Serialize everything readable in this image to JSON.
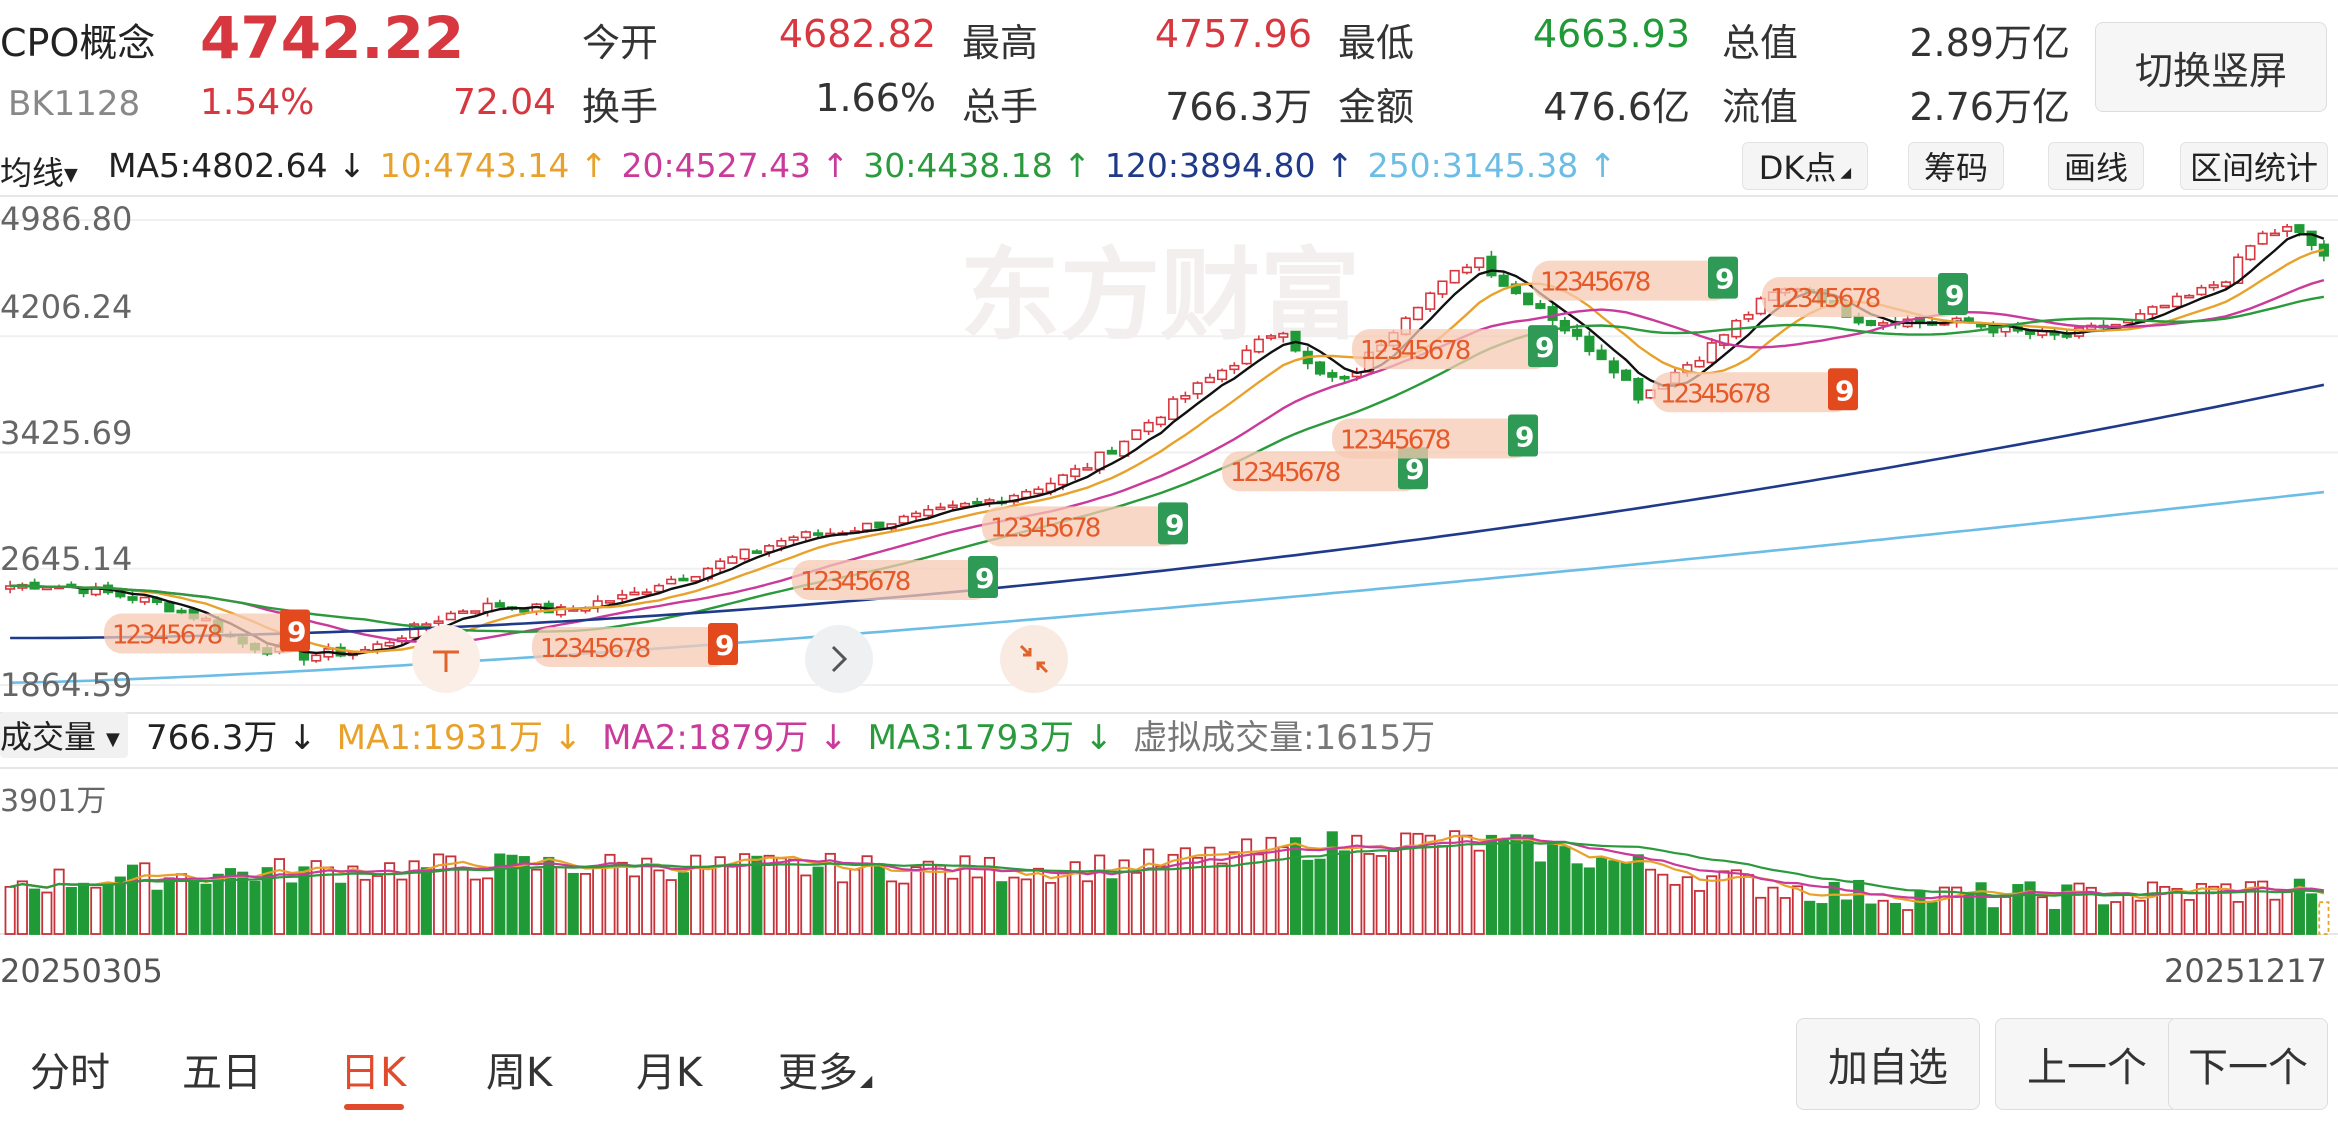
{
  "header": {
    "name": "CPO概念",
    "code": "BK1128",
    "price": "4742.22",
    "change_pct": "1.54%",
    "change": "72.04",
    "stats": [
      {
        "label": "今开",
        "value": "4682.82",
        "color": "red"
      },
      {
        "label": "最高",
        "value": "4757.96",
        "color": "red"
      },
      {
        "label": "最低",
        "value": "4663.93",
        "color": "green"
      },
      {
        "label": "总值",
        "value": "2.89万亿",
        "color": "dark"
      },
      {
        "label": "换手",
        "value": "1.66%",
        "color": "dark"
      },
      {
        "label": "总手",
        "value": "766.3万",
        "color": "dark"
      },
      {
        "label": "金额",
        "value": "476.6亿",
        "color": "dark"
      },
      {
        "label": "流值",
        "value": "2.76万亿",
        "color": "dark"
      }
    ],
    "switch_label": "切换竖屏"
  },
  "ma_bar": {
    "selector": "均线",
    "items": [
      {
        "text": "MA5:4802.64 ↓",
        "color": "#222222"
      },
      {
        "text": "10:4743.14 ↑",
        "color": "#e8a22b"
      },
      {
        "text": "20:4527.43 ↑",
        "color": "#c93a9a"
      },
      {
        "text": "30:4438.18 ↑",
        "color": "#2a9a3c"
      },
      {
        "text": "120:3894.80 ↑",
        "color": "#1f3a8a"
      },
      {
        "text": "250:3145.38 ↑",
        "color": "#6cbde6"
      }
    ],
    "tools": [
      "DK点",
      "筹码",
      "画线",
      "区间统计"
    ]
  },
  "price_axis": [
    "4986.80",
    "4206.24",
    "3425.69",
    "2645.14",
    "1864.59"
  ],
  "volume_bar": {
    "selector": "成交量",
    "items": [
      {
        "text": "766.3万 ↓",
        "color": "#222222"
      },
      {
        "text": "MA1:1931万 ↓",
        "color": "#e8a22b"
      },
      {
        "text": "MA2:1879万 ↓",
        "color": "#c93a9a"
      },
      {
        "text": "MA3:1793万 ↓",
        "color": "#2a9a3c"
      },
      {
        "text": "虚拟成交量:1615万",
        "color": "#777777"
      }
    ],
    "axis_max": "3901万"
  },
  "dates": {
    "start": "20250305",
    "end": "20251217"
  },
  "watermark": "东方财富",
  "tabs": [
    "分时",
    "五日",
    "日K",
    "周K",
    "月K",
    "更多"
  ],
  "active_tab": "日K",
  "actions": [
    "加自选",
    "上一个",
    "下一个"
  ],
  "td_labels": [
    {
      "text": "12345678",
      "end": "9",
      "end_color": "#e24a1e"
    },
    {
      "text": "12345678",
      "end": "9",
      "end_color": "#e24a1e"
    },
    {
      "text": "12345678",
      "end": "9",
      "end_color": "#2e9a55"
    },
    {
      "text": "12345678",
      "end": "9",
      "end_color": "#2e9a55"
    },
    {
      "text": "12345678",
      "end": "9",
      "end_color": "#2e9a55"
    },
    {
      "text": "12345678",
      "end": "9",
      "end_color": "#2e9a55"
    },
    {
      "text": "12345678",
      "end": "9",
      "end_color": "#2e9a55"
    },
    {
      "text": "12345678",
      "end": "9",
      "end_color": "#2e9a55"
    },
    {
      "text": "12345678",
      "end": "9",
      "end_color": "#2e9a55"
    },
    {
      "text": "12345678",
      "end": "9",
      "end_color": "#e24a1e"
    }
  ],
  "chart_data": {
    "type": "candlestick",
    "x_range": [
      "20250305",
      "20251217"
    ],
    "ylim": [
      1864.59,
      4986.8
    ],
    "y_ticks": [
      4986.8,
      4206.24,
      3425.69,
      2645.14,
      1864.59
    ],
    "price_path": [
      2530,
      2540,
      2520,
      2480,
      2440,
      2380,
      2300,
      2150,
      2100,
      2060,
      2080,
      2100,
      2200,
      2300,
      2380,
      2400,
      2380,
      2360,
      2420,
      2460,
      2560,
      2620,
      2700,
      2780,
      2860,
      2880,
      2920,
      2960,
      3000,
      3050,
      3100,
      3160,
      3230,
      3330,
      3480,
      3640,
      3800,
      3950,
      4100,
      4280,
      3950,
      3900,
      4150,
      4400,
      4560,
      4750,
      4520,
      4400,
      4200,
      4050,
      3800,
      3950,
      4100,
      4300,
      4480,
      4550,
      4400,
      4300,
      4320,
      4290,
      4300,
      4250,
      4220,
      4200,
      4260,
      4300,
      4400,
      4480,
      4600,
      4880,
      4930,
      4750
    ],
    "volume_ylim": [
      0,
      3901
    ],
    "volume_unit": "万",
    "latest_volume": 766.3
  }
}
